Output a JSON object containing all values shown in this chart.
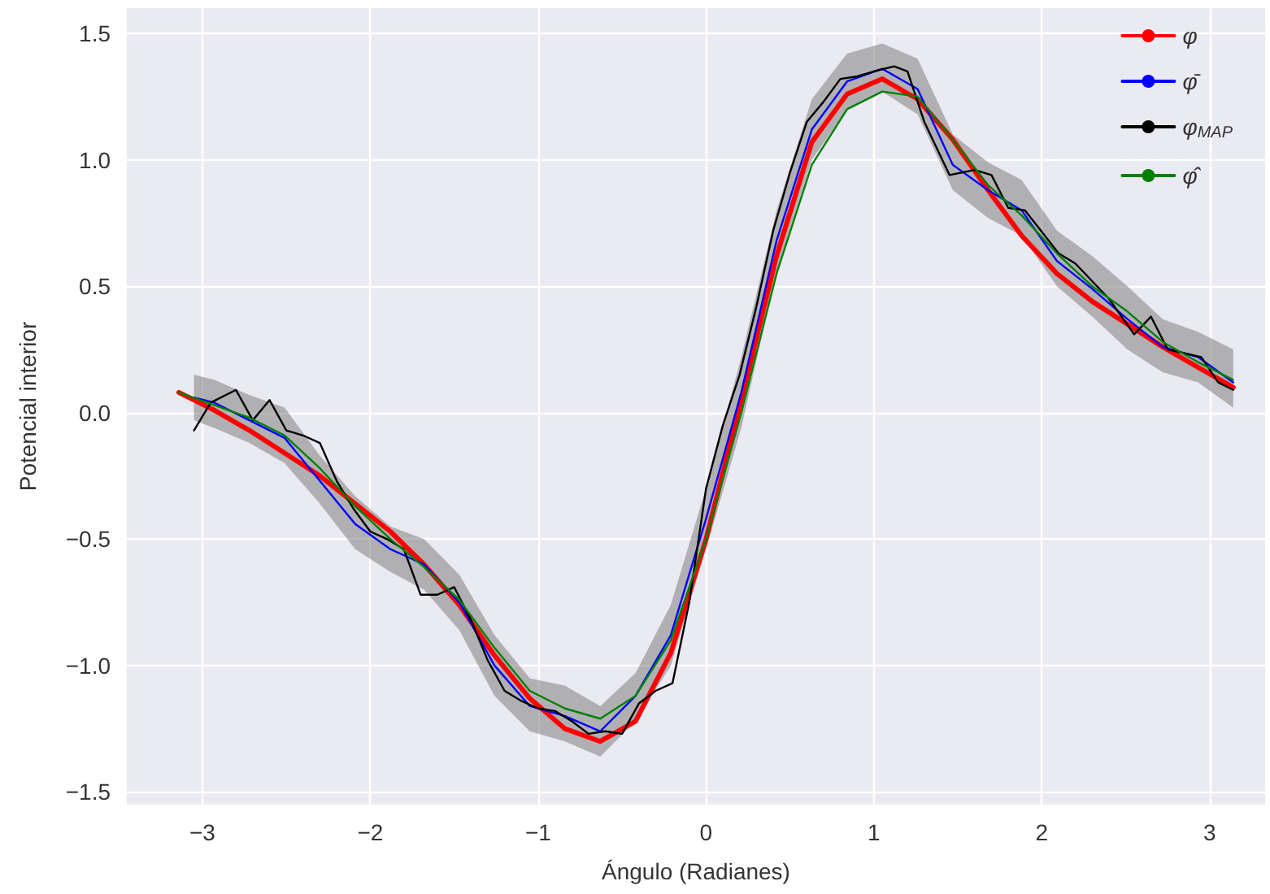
{
  "chart_data": {
    "type": "line",
    "xlabel": "Ángulo (Radianes)",
    "ylabel": "Potencial interior",
    "xlim": [
      -3.45,
      3.33
    ],
    "ylim": [
      -1.55,
      1.6
    ],
    "xticks": [
      {
        "value": -3,
        "label": "−3"
      },
      {
        "value": -2,
        "label": "−2"
      },
      {
        "value": -1,
        "label": "−1"
      },
      0,
      1,
      2,
      3
    ],
    "yticks": [
      {
        "value": -1.5,
        "label": "−1.5"
      },
      {
        "value": -1,
        "label": "−1.0"
      },
      {
        "value": -0.5,
        "label": "−0.5"
      },
      {
        "value": 0,
        "label": "0.0"
      },
      0.5,
      {
        "value": 1,
        "label": "1.0"
      },
      1.5
    ],
    "grid": true,
    "legend": "top right",
    "series": [
      {
        "name": "φ",
        "color": "#ff0000",
        "x": [
          -3.14,
          -2.93,
          -2.72,
          -2.51,
          -2.3,
          -2.09,
          -1.88,
          -1.68,
          -1.47,
          -1.26,
          -1.05,
          -0.84,
          -0.63,
          -0.42,
          -0.21,
          0,
          0.21,
          0.42,
          0.63,
          0.84,
          1.05,
          1.26,
          1.47,
          1.68,
          1.88,
          2.09,
          2.3,
          2.51,
          2.72,
          2.93,
          3.14
        ],
        "values": [
          0.08,
          0.01,
          -0.07,
          -0.16,
          -0.25,
          -0.36,
          -0.47,
          -0.6,
          -0.76,
          -0.96,
          -1.13,
          -1.25,
          -1.3,
          -1.22,
          -0.95,
          -0.5,
          0.05,
          0.62,
          1.07,
          1.26,
          1.32,
          1.24,
          1.08,
          0.88,
          0.7,
          0.55,
          0.44,
          0.35,
          0.26,
          0.18,
          0.1
        ]
      },
      {
        "name": "φ̄",
        "color": "#0000ff",
        "x": [
          -3.05,
          -2.93,
          -2.72,
          -2.51,
          -2.3,
          -2.09,
          -1.88,
          -1.68,
          -1.47,
          -1.26,
          -1.05,
          -0.84,
          -0.63,
          -0.42,
          -0.21,
          0,
          0.21,
          0.42,
          0.63,
          0.84,
          1.05,
          1.26,
          1.47,
          1.68,
          1.88,
          2.09,
          2.3,
          2.51,
          2.72,
          2.93,
          3.14
        ],
        "values": [
          0.06,
          0.04,
          -0.03,
          -0.1,
          -0.27,
          -0.44,
          -0.54,
          -0.6,
          -0.75,
          -1.0,
          -1.16,
          -1.2,
          -1.26,
          -1.12,
          -0.88,
          -0.42,
          0.08,
          0.68,
          1.12,
          1.31,
          1.36,
          1.28,
          0.98,
          0.88,
          0.8,
          0.6,
          0.49,
          0.37,
          0.26,
          0.22,
          0.12
        ],
        "upper": [
          0.15,
          0.13,
          0.07,
          0.02,
          -0.17,
          -0.33,
          -0.45,
          -0.5,
          -0.64,
          -0.88,
          -1.05,
          -1.08,
          -1.16,
          -1.03,
          -0.76,
          -0.3,
          0.22,
          0.8,
          1.24,
          1.42,
          1.46,
          1.4,
          1.1,
          0.99,
          0.92,
          0.72,
          0.62,
          0.5,
          0.37,
          0.32,
          0.25
        ],
        "lower": [
          -0.03,
          -0.06,
          -0.12,
          -0.2,
          -0.36,
          -0.54,
          -0.63,
          -0.7,
          -0.86,
          -1.12,
          -1.26,
          -1.3,
          -1.36,
          -1.22,
          -1.0,
          -0.54,
          -0.06,
          0.56,
          1.0,
          1.2,
          1.27,
          1.18,
          0.88,
          0.77,
          0.7,
          0.5,
          0.38,
          0.25,
          0.16,
          0.12,
          0.02
        ]
      },
      {
        "name": "φ$_{MAP}$",
        "color": "#000000",
        "x": [
          -3.05,
          -2.95,
          -2.8,
          -2.7,
          -2.6,
          -2.5,
          -2.4,
          -2.3,
          -2.2,
          -2.1,
          -2.0,
          -1.9,
          -1.8,
          -1.7,
          -1.6,
          -1.5,
          -1.4,
          -1.3,
          -1.2,
          -1.1,
          -1.0,
          -0.9,
          -0.8,
          -0.7,
          -0.6,
          -0.5,
          -0.4,
          -0.3,
          -0.2,
          -0.1,
          0.0,
          0.1,
          0.2,
          0.3,
          0.4,
          0.5,
          0.6,
          0.7,
          0.8,
          0.9,
          1.0,
          1.12,
          1.2,
          1.3,
          1.45,
          1.6,
          1.7,
          1.8,
          1.9,
          2.1,
          2.2,
          2.4,
          2.55,
          2.65,
          2.75,
          2.95,
          3.05,
          3.14
        ],
        "values": [
          -0.07,
          0.04,
          0.09,
          -0.03,
          0.05,
          -0.07,
          -0.09,
          -0.12,
          -0.27,
          -0.38,
          -0.47,
          -0.5,
          -0.54,
          -0.72,
          -0.72,
          -0.69,
          -0.82,
          -0.98,
          -1.1,
          -1.14,
          -1.17,
          -1.18,
          -1.22,
          -1.27,
          -1.26,
          -1.27,
          -1.15,
          -1.1,
          -1.07,
          -0.75,
          -0.3,
          -0.05,
          0.15,
          0.42,
          0.72,
          0.95,
          1.15,
          1.23,
          1.32,
          1.33,
          1.35,
          1.37,
          1.35,
          1.15,
          0.94,
          0.96,
          0.94,
          0.81,
          0.8,
          0.63,
          0.59,
          0.45,
          0.31,
          0.38,
          0.25,
          0.22,
          0.12,
          0.09
        ]
      },
      {
        "name": "φ̂",
        "color": "#008000",
        "x": [
          -3.14,
          -2.93,
          -2.72,
          -2.51,
          -2.3,
          -2.09,
          -1.88,
          -1.68,
          -1.47,
          -1.26,
          -1.05,
          -0.84,
          -0.63,
          -0.42,
          -0.21,
          0,
          0.21,
          0.42,
          0.63,
          0.84,
          1.05,
          1.26,
          1.47,
          1.68,
          1.88,
          2.09,
          2.3,
          2.51,
          2.72,
          2.93,
          3.14
        ],
        "values": [
          0.08,
          0.03,
          -0.02,
          -0.09,
          -0.22,
          -0.37,
          -0.5,
          -0.61,
          -0.74,
          -0.93,
          -1.1,
          -1.17,
          -1.21,
          -1.12,
          -0.9,
          -0.5,
          0.0,
          0.55,
          0.98,
          1.2,
          1.27,
          1.25,
          1.08,
          0.9,
          0.78,
          0.63,
          0.5,
          0.4,
          0.28,
          0.2,
          0.13
        ]
      }
    ]
  }
}
